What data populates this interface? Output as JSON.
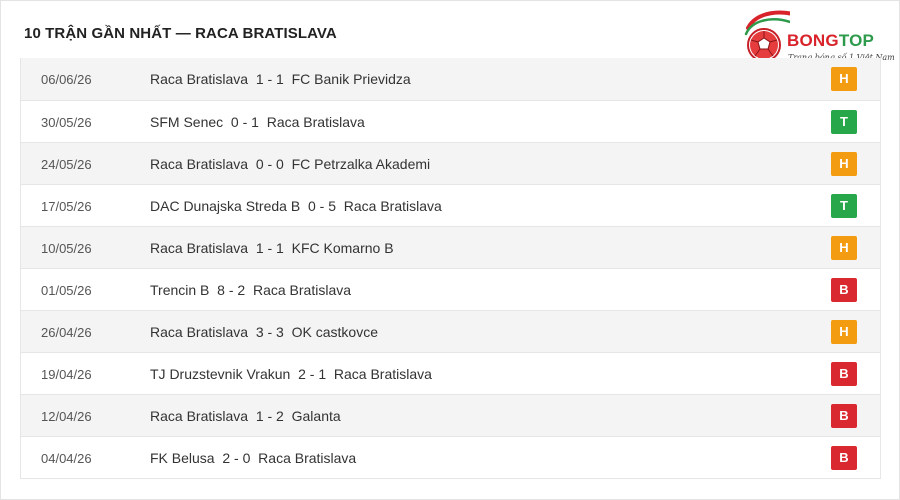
{
  "header": {
    "title": "10 TRẬN GẦN NHẤT — RACA BRATISLAVA"
  },
  "logo": {
    "brand_part1": "BONG",
    "brand_part2": "TOP",
    "tagline": "Trang bóng số 1 Việt Nam",
    "icon": "soccer-ball-icon"
  },
  "colors": {
    "H": "#f39c12",
    "T": "#27a74a",
    "B": "#d9282f",
    "brand_red": "#d9232b",
    "brand_green": "#2e9a4b"
  },
  "matches": [
    {
      "date": "06/06/26",
      "home": "Raca Bratislava",
      "score": "1 - 1",
      "away": "FC Banik Prievidza",
      "result": "H"
    },
    {
      "date": "30/05/26",
      "home": "SFM Senec",
      "score": "0 - 1",
      "away": "Raca Bratislava",
      "result": "T"
    },
    {
      "date": "24/05/26",
      "home": "Raca Bratislava",
      "score": "0 - 0",
      "away": "FC Petrzalka Akademi",
      "result": "H"
    },
    {
      "date": "17/05/26",
      "home": "DAC Dunajska Streda B",
      "score": "0 - 5",
      "away": "Raca Bratislava",
      "result": "T"
    },
    {
      "date": "10/05/26",
      "home": "Raca Bratislava",
      "score": "1 - 1",
      "away": "KFC Komarno B",
      "result": "H"
    },
    {
      "date": "01/05/26",
      "home": "Trencin B",
      "score": "8 - 2",
      "away": "Raca Bratislava",
      "result": "B"
    },
    {
      "date": "26/04/26",
      "home": "Raca Bratislava",
      "score": "3 - 3",
      "away": "OK castkovce",
      "result": "H"
    },
    {
      "date": "19/04/26",
      "home": "TJ Druzstevnik Vrakun",
      "score": "2 - 1",
      "away": "Raca Bratislava",
      "result": "B"
    },
    {
      "date": "12/04/26",
      "home": "Raca Bratislava",
      "score": "1 - 2",
      "away": "Galanta",
      "result": "B"
    },
    {
      "date": "04/04/26",
      "home": "FK Belusa",
      "score": "2 - 0",
      "away": "Raca Bratislava",
      "result": "B"
    }
  ]
}
